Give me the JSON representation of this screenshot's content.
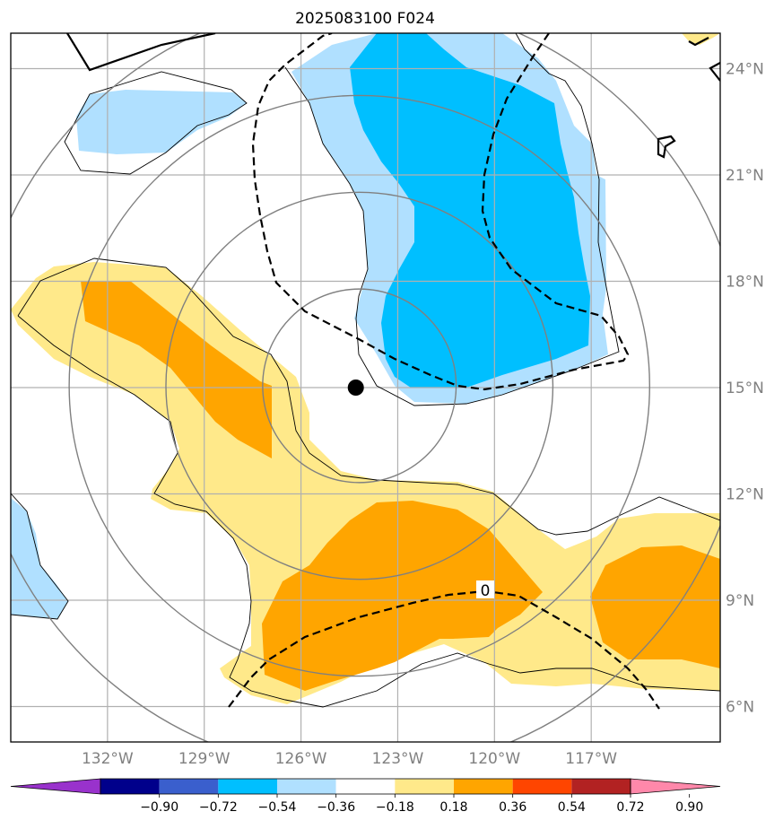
{
  "title": "2025083100 F024",
  "map": {
    "lon_range": [
      -135,
      -113
    ],
    "lat_range": [
      5,
      25
    ],
    "lat_ticks": [
      {
        "value": 6,
        "label": "6°N"
      },
      {
        "value": 9,
        "label": "9°N"
      },
      {
        "value": 12,
        "label": "12°N"
      },
      {
        "value": 15,
        "label": "15°N"
      },
      {
        "value": 18,
        "label": "18°N"
      },
      {
        "value": 21,
        "label": "21°N"
      },
      {
        "value": 24,
        "label": "24°N"
      }
    ],
    "lon_ticks": [
      {
        "value": -132,
        "label": "132°W"
      },
      {
        "value": -129,
        "label": "129°W"
      },
      {
        "value": -126,
        "label": "126°W"
      },
      {
        "value": -123,
        "label": "123°W"
      },
      {
        "value": -120,
        "label": "120°W"
      },
      {
        "value": -117,
        "label": "117°W"
      }
    ],
    "storm_center": {
      "lon": -124.3,
      "lat": 15.0
    },
    "range_rings_deg": [
      3,
      6,
      9,
      12
    ],
    "zero_contour_label": "0",
    "colors": {
      "light_blue": "#b0e0ff",
      "blue": "#00bfff",
      "light_yellow": "#ffe98a",
      "orange": "#ffa500",
      "grid": "#b0b0b0",
      "ring": "#808080"
    }
  },
  "colorbar": {
    "colors": [
      "#9932cc",
      "#00008b",
      "#3a5fcd",
      "#00bfff",
      "#b0e0ff",
      "#ffffff",
      "#ffe98a",
      "#ffa500",
      "#ff4500",
      "#b22222",
      "#ff88aa"
    ],
    "tick_labels": [
      "−0.90",
      "−0.72",
      "−0.54",
      "−0.36",
      "−0.18",
      "0.18",
      "0.36",
      "0.54",
      "0.72",
      "0.90"
    ]
  }
}
